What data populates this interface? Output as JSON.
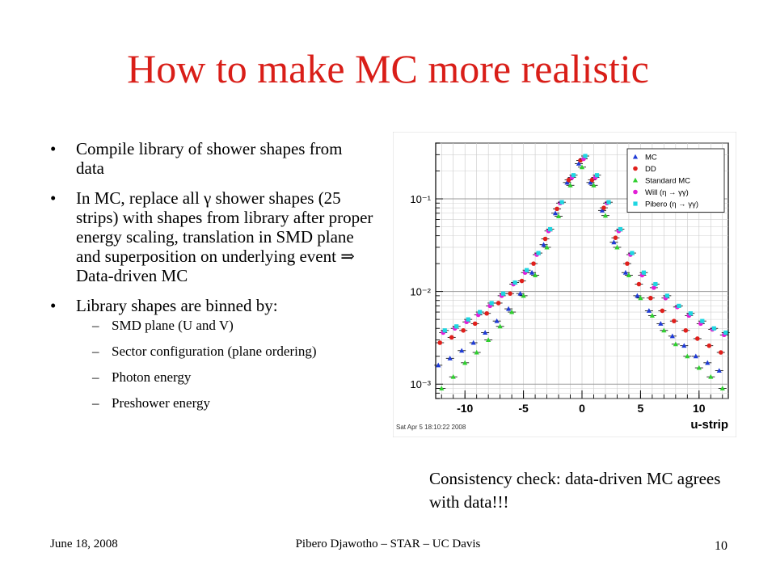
{
  "slide": {
    "title": "How to make MC more realistic",
    "bullets": [
      {
        "text": "Compile library of shower shapes from data"
      },
      {
        "text": "In MC, replace all γ shower shapes (25 strips) with shapes from library after proper energy scaling, translation in SMD plane and superposition on underlying event ⇒ Data-driven MC"
      },
      {
        "text": "Library shapes are binned by:",
        "subitems": [
          "SMD plane (U and V)",
          "Sector configuration (plane ordering)",
          "Photon energy",
          "Preshower energy"
        ]
      }
    ],
    "caption": "Consistency check: data-driven MC agrees with data!!!",
    "footer": {
      "date": "June 18, 2008",
      "author": "Pibero Djawotho – STAR – UC Davis",
      "page": "10"
    }
  },
  "chart_data": {
    "type": "scatter",
    "xlabel": "u-strip",
    "ylabel": "",
    "xlim": [
      -12.5,
      12.5
    ],
    "ylim": [
      0.0007,
      0.4
    ],
    "yscale": "log",
    "x_ticks": [
      -10,
      -5,
      0,
      5,
      10
    ],
    "y_tick_labels": [
      "10⁻³",
      "10⁻²",
      "10⁻¹"
    ],
    "grid": true,
    "legend_position": "top-right",
    "timestamp": "Sat Apr  5 18:10:22 2008",
    "x": [
      -12,
      -11,
      -10,
      -9,
      -8,
      -7,
      -6,
      -5,
      -4,
      -3,
      -2,
      -1,
      0,
      1,
      2,
      3,
      4,
      5,
      6,
      7,
      8,
      9,
      10,
      11,
      12
    ],
    "series": [
      {
        "name": "MC",
        "color": "#1f3bd6",
        "marker": "triangle",
        "values": [
          0.0016,
          0.0019,
          0.0023,
          0.0028,
          0.0036,
          0.0048,
          0.0065,
          0.0095,
          0.016,
          0.032,
          0.07,
          0.15,
          0.24,
          0.15,
          0.075,
          0.034,
          0.016,
          0.009,
          0.0062,
          0.0045,
          0.0033,
          0.0026,
          0.002,
          0.0017,
          0.0014
        ]
      },
      {
        "name": "DD",
        "color": "#e0201c",
        "marker": "circle",
        "values": [
          0.0028,
          0.0032,
          0.0038,
          0.0045,
          0.0058,
          0.0075,
          0.0095,
          0.013,
          0.02,
          0.037,
          0.078,
          0.16,
          0.26,
          0.16,
          0.08,
          0.038,
          0.02,
          0.012,
          0.0085,
          0.0062,
          0.0048,
          0.0038,
          0.0031,
          0.0026,
          0.0022
        ]
      },
      {
        "name": "Standard MC",
        "color": "#2fcf2f",
        "marker": "triangle",
        "values": [
          0.0009,
          0.0012,
          0.0017,
          0.0022,
          0.003,
          0.0042,
          0.006,
          0.009,
          0.015,
          0.03,
          0.065,
          0.14,
          0.22,
          0.14,
          0.066,
          0.03,
          0.015,
          0.0085,
          0.0055,
          0.0038,
          0.0027,
          0.002,
          0.0015,
          0.0012,
          0.0009
        ]
      },
      {
        "name": "Will (η → γγ)",
        "color": "#e21fd6",
        "marker": "circle",
        "values": [
          0.0036,
          0.004,
          0.0047,
          0.0056,
          0.007,
          0.009,
          0.012,
          0.016,
          0.025,
          0.045,
          0.09,
          0.17,
          0.27,
          0.17,
          0.09,
          0.045,
          0.025,
          0.015,
          0.011,
          0.0085,
          0.0068,
          0.0055,
          0.0045,
          0.0039,
          0.0034
        ]
      },
      {
        "name": "Pibero (η → γγ)",
        "color": "#1fd6e2",
        "marker": "square",
        "values": [
          0.0038,
          0.0042,
          0.005,
          0.006,
          0.0075,
          0.0095,
          0.0125,
          0.017,
          0.026,
          0.047,
          0.092,
          0.18,
          0.29,
          0.18,
          0.092,
          0.047,
          0.026,
          0.016,
          0.012,
          0.009,
          0.007,
          0.0058,
          0.0048,
          0.004,
          0.0036
        ]
      }
    ]
  }
}
